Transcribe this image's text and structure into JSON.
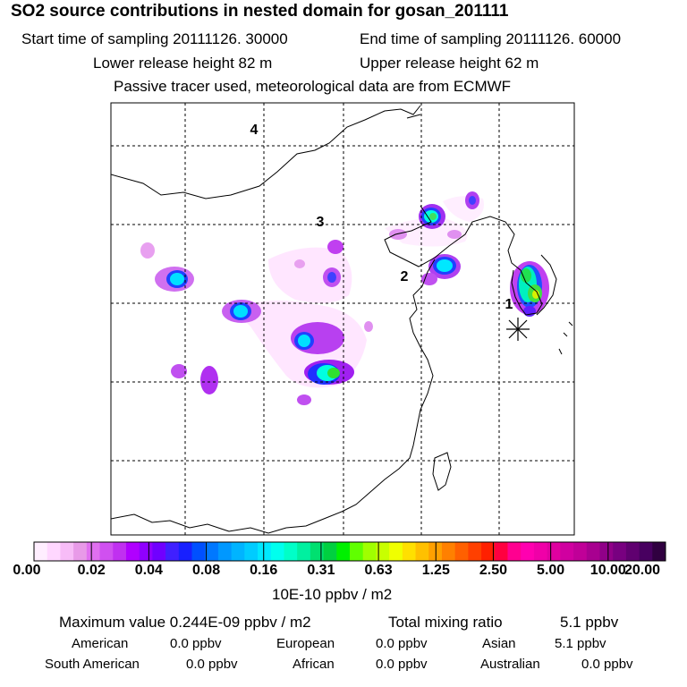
{
  "header": {
    "title": "SO2 source contributions in nested domain for gosan_201111",
    "start_label": "Start time of sampling 20111126. 30000",
    "end_label": "End time of sampling 20111126. 60000",
    "lower_height_label": "Lower release height   82 m",
    "upper_height_label": "Upper release height   62 m",
    "tracer_note": "Passive tracer used, meteorological data are from ECMWF"
  },
  "map": {
    "region_labels": [
      "1",
      "2",
      "3",
      "4"
    ],
    "receptor_marker": "asterisk-receptor-icon"
  },
  "colorbar": {
    "labels": [
      "0.00",
      "0.02",
      "0.04",
      "0.08",
      "0.16",
      "0.31",
      "0.63",
      "1.25",
      "2.50",
      "5.00",
      "10.00",
      "20.00"
    ],
    "unit": "10E-10 ppbv / m2",
    "colors": [
      "#ffeeff",
      "#ffd7ff",
      "#f7bcf7",
      "#e89ae8",
      "#e070f0",
      "#d050f0",
      "#c030f0",
      "#b000ff",
      "#9000ff",
      "#7000ff",
      "#4020ff",
      "#1820ff",
      "#0050ff",
      "#0078ff",
      "#0098ff",
      "#00b4ff",
      "#00ccff",
      "#00e8ff",
      "#00ffee",
      "#00ffc8",
      "#00f0a0",
      "#00e070",
      "#00d040",
      "#00f000",
      "#60ff00",
      "#a0ff00",
      "#c8ff00",
      "#f0ff00",
      "#ffe000",
      "#ffc000",
      "#ffa000",
      "#ff8000",
      "#ff6000",
      "#ff4000",
      "#ff2000",
      "#ff0040",
      "#ff0090",
      "#ff00b0",
      "#f000a8",
      "#e000a0",
      "#d000a0",
      "#c00098",
      "#a80090",
      "#900088",
      "#780080",
      "#600070",
      "#480060",
      "#300040"
    ]
  },
  "summary": {
    "max_label": "Maximum value  0.244E-09 ppbv / m2",
    "total_label": "Total mixing ratio",
    "total_value": "5.1 ppbv",
    "american_label": "American",
    "american_value": "0.0 ppbv",
    "european_label": "European",
    "european_value": "0.0 ppbv",
    "asian_label": "Asian",
    "asian_value": "5.1 ppbv",
    "south_american_label": "South American",
    "south_american_value": "0.0 ppbv",
    "african_label": "African",
    "african_value": "0.0 ppbv",
    "australian_label": "Australian",
    "australian_value": "0.0 ppbv"
  }
}
